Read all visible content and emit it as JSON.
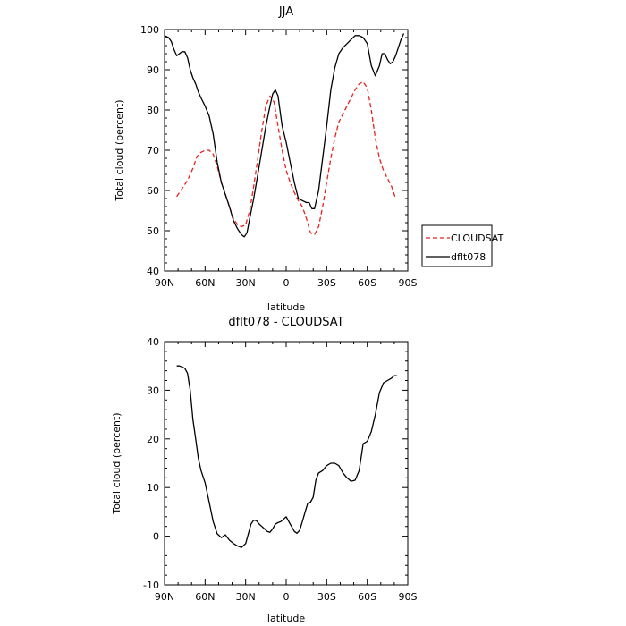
{
  "chart_data": [
    {
      "type": "line",
      "title": "JJA",
      "xlabel": "latitude",
      "ylabel": "Total cloud (percent)",
      "xlim": [
        90,
        -90
      ],
      "ylim": [
        40,
        100
      ],
      "x_ticks": [
        90,
        60,
        30,
        0,
        -30,
        -60,
        -90
      ],
      "x_tick_labels": [
        "90N",
        "60N",
        "30N",
        "0",
        "30S",
        "60S",
        "90S"
      ],
      "y_ticks": [
        40,
        50,
        60,
        70,
        80,
        90,
        100
      ],
      "y_tick_labels": [
        "40",
        "50",
        "60",
        "70",
        "80",
        "90",
        "100"
      ],
      "legend_position": "right",
      "series": [
        {
          "name": "CLOUDSAT",
          "color": "#e8231f",
          "dash": "dashed",
          "x": [
            81,
            77,
            73,
            69,
            66,
            63,
            60,
            57,
            54,
            51,
            48,
            45,
            42,
            39,
            36,
            33,
            30,
            27,
            24,
            21,
            18,
            15,
            12,
            9,
            6,
            3,
            0,
            -3,
            -6,
            -9,
            -12,
            -15,
            -18,
            -21,
            -24,
            -27,
            -30,
            -33,
            -36,
            -39,
            -42,
            -45,
            -48,
            -51,
            -54,
            -57,
            -60,
            -63,
            -66,
            -69,
            -72,
            -75,
            -78,
            -81
          ],
          "y": [
            58.5,
            60.5,
            62.5,
            65.5,
            68.5,
            69.5,
            70,
            70,
            69,
            66,
            62,
            59,
            56,
            53,
            51.5,
            51,
            51.5,
            55,
            61,
            68,
            75,
            81,
            83.5,
            82,
            76,
            70,
            65,
            62,
            59.5,
            57.5,
            56,
            53,
            49.5,
            49,
            51,
            56,
            62,
            68,
            73,
            77,
            79,
            81,
            83,
            85,
            86.5,
            87,
            85.5,
            80,
            73,
            68,
            65,
            63,
            61,
            58
          ]
        },
        {
          "name": "dflt078",
          "color": "#000000",
          "dash": "solid",
          "x": [
            90,
            87,
            85,
            83,
            81,
            79,
            77,
            75,
            73,
            71,
            69,
            67,
            65,
            63,
            60,
            57,
            54,
            51,
            48,
            45,
            42,
            39,
            36,
            33,
            31,
            29,
            27,
            24,
            21,
            18,
            15,
            12,
            10,
            8,
            6,
            3,
            0,
            -3,
            -6,
            -9,
            -12,
            -15,
            -17,
            -19,
            -21,
            -24,
            -27,
            -30,
            -33,
            -36,
            -39,
            -42,
            -45,
            -48,
            -51,
            -54,
            -57,
            -60,
            -63,
            -66,
            -69,
            -71,
            -73,
            -75,
            -77,
            -79,
            -81,
            -83,
            -85,
            -87
          ],
          "y": [
            98.5,
            98,
            97,
            95,
            93.5,
            94,
            94.5,
            94.5,
            93,
            90,
            88,
            86.5,
            84.5,
            83,
            81,
            78.5,
            74,
            67,
            62,
            59,
            56,
            52.5,
            50.5,
            49,
            48.5,
            49.5,
            53,
            58,
            64,
            70,
            76,
            81,
            84,
            85,
            83.5,
            76,
            72,
            67,
            62,
            58,
            57.5,
            57,
            57,
            55.5,
            55.5,
            60,
            68,
            76,
            85,
            90.5,
            94,
            95.5,
            96.5,
            97.5,
            98.5,
            98.5,
            98,
            96.5,
            91,
            88.5,
            91,
            94,
            94,
            92.5,
            91.5,
            92,
            93.5,
            95.5,
            97.5,
            99
          ]
        }
      ]
    },
    {
      "type": "line",
      "title": "dflt078 - CLOUDSAT",
      "xlabel": "latitude",
      "ylabel": "Total cloud (percent)",
      "xlim": [
        90,
        -90
      ],
      "ylim": [
        -10,
        40
      ],
      "x_ticks": [
        90,
        60,
        30,
        0,
        -30,
        -60,
        -90
      ],
      "x_tick_labels": [
        "90N",
        "60N",
        "30N",
        "0",
        "30S",
        "60S",
        "90S"
      ],
      "y_ticks": [
        -10,
        0,
        10,
        20,
        30,
        40
      ],
      "y_tick_labels": [
        "-10",
        "0",
        "10",
        "20",
        "30",
        "40"
      ],
      "series": [
        {
          "color": "#000000",
          "dash": "solid",
          "x": [
            81,
            79,
            77,
            75,
            73,
            71,
            69,
            67,
            65,
            63,
            60,
            57,
            54,
            51,
            48,
            45,
            42,
            39,
            36,
            33,
            30,
            28,
            26,
            24,
            22,
            20,
            18,
            16,
            14,
            12,
            10,
            8,
            6,
            4,
            2,
            0,
            -2,
            -4,
            -6,
            -8,
            -10,
            -12,
            -14,
            -16,
            -18,
            -20,
            -22,
            -24,
            -27,
            -30,
            -33,
            -36,
            -39,
            -42,
            -45,
            -48,
            -51,
            -54,
            -57,
            -60,
            -63,
            -66,
            -69,
            -72,
            -75,
            -78,
            -80,
            -82
          ],
          "y": [
            35,
            35,
            34.8,
            34.5,
            33.5,
            30,
            24,
            20,
            16,
            13.5,
            11,
            7,
            3,
            0.5,
            -0.3,
            0.3,
            -0.8,
            -1.5,
            -2,
            -2.3,
            -1.5,
            0.5,
            2.5,
            3.3,
            3.2,
            2.5,
            2,
            1.5,
            1,
            0.8,
            1.5,
            2.5,
            2.8,
            3,
            3.5,
            4,
            3,
            2,
            1,
            0.6,
            1.2,
            3,
            5,
            6.8,
            7,
            8,
            11.5,
            13,
            13.5,
            14.5,
            15,
            15,
            14.5,
            13,
            12,
            11.3,
            11.5,
            13.5,
            19,
            19.5,
            21.5,
            25,
            29.5,
            31.5,
            32,
            32.5,
            33,
            33
          ]
        }
      ]
    }
  ]
}
